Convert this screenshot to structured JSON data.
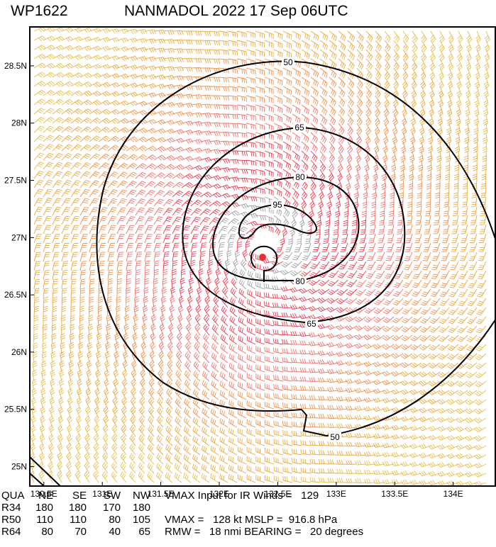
{
  "title": {
    "storm_id": "WP1622",
    "name_time": "NANMADOL 2022 17 Sep 06UTC"
  },
  "map": {
    "lonlim": [
      130.38,
      134.36
    ],
    "latlim": [
      24.83,
      28.84
    ],
    "lon_ticks": [
      {
        "value": 130.5,
        "label": "130.5E"
      },
      {
        "value": 131,
        "label": "131E"
      },
      {
        "value": 131.5,
        "label": "131.5E"
      },
      {
        "value": 132,
        "label": "132E"
      },
      {
        "value": 132.5,
        "label": "132.5E"
      },
      {
        "value": 133,
        "label": "133E"
      },
      {
        "value": 133.5,
        "label": "133.5E"
      },
      {
        "value": 134,
        "label": "134E"
      }
    ],
    "lat_ticks": [
      {
        "value": 28.5,
        "label": "28.5N"
      },
      {
        "value": 28,
        "label": "28N"
      },
      {
        "value": 27.5,
        "label": "27.5N"
      },
      {
        "value": 27,
        "label": "27N"
      },
      {
        "value": 26.5,
        "label": "26.5N"
      },
      {
        "value": 26,
        "label": "26N"
      },
      {
        "value": 25.5,
        "label": "25.5N"
      },
      {
        "value": 25,
        "label": "25N"
      }
    ],
    "contour_labels": [
      "50",
      "65",
      "80",
      "95",
      "80",
      "65",
      "50"
    ]
  },
  "table": {
    "rows": [
      [
        "QUA",
        "NE",
        "SE",
        "SW",
        "NW",
        "VMAX Input for IR Winds =   129"
      ],
      [
        "R34",
        "180",
        "180",
        "170",
        "180",
        ""
      ],
      [
        "R50",
        "110",
        "110",
        "80",
        "105",
        "VMAX =   128 kt MSLP =  916.8 hPa"
      ],
      [
        "R64",
        "80",
        "70",
        "40",
        "65",
        "RMW =   18 nmi BEARING =   20 degrees"
      ]
    ]
  }
}
